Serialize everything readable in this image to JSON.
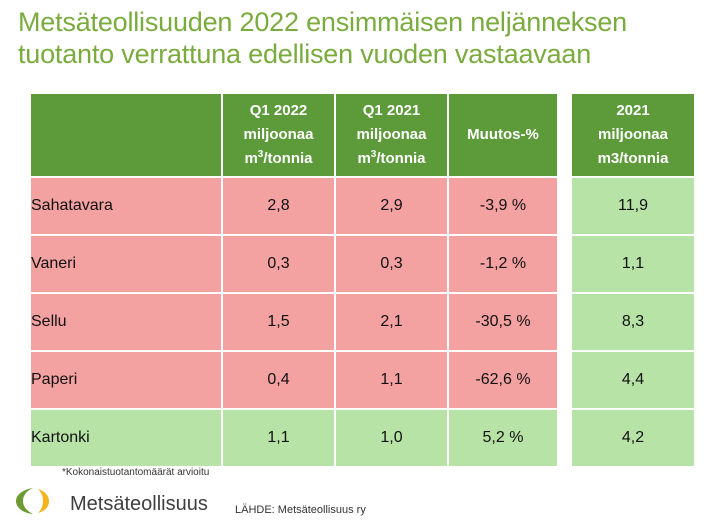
{
  "title_lines": [
    "Metsäteollisuuden 2022 ensimmäisen neljänneksen",
    "tuotanto verrattuna edellisen vuoden vastaavaan"
  ],
  "main_table": {
    "headers": [
      "",
      {
        "line1": "Q1 2022",
        "line2": "miljoonaa",
        "unit_pre": "m",
        "unit_sup": "3",
        "unit_post": "/tonnia"
      },
      {
        "line1": "Q1 2021",
        "line2": "miljoonaa",
        "unit_pre": "m",
        "unit_sup": "3",
        "unit_post": "/tonnia"
      },
      "Muutos-%"
    ],
    "rows": [
      {
        "name": "Sahatavara",
        "q1_2022": "2,8",
        "q1_2021": "2,9",
        "change": "-3,9 %"
      },
      {
        "name": "Vaneri",
        "q1_2022": "0,3",
        "q1_2021": "0,3",
        "change": "-1,2 %"
      },
      {
        "name": "Sellu",
        "q1_2022": "1,5",
        "q1_2021": "2,1",
        "change": "-30,5 %"
      },
      {
        "name": "Paperi",
        "q1_2022": "0,4",
        "q1_2021": "1,1",
        "change": "-62,6 %"
      },
      {
        "name": "Kartonki",
        "q1_2022": "1,1",
        "q1_2021": "1,0",
        "change": "5,2 %"
      }
    ]
  },
  "side_table": {
    "header_lines": [
      "2021",
      "miljoonaa",
      "m3/tonnia"
    ],
    "values": [
      "11,9",
      "1,1",
      "8,3",
      "4,4",
      "4,2"
    ]
  },
  "footnote": "*Kokonaistuotantomäärät arvioitu",
  "brand": "Metsäteollisuus",
  "source": "LÄHDE: Metsäteollisuus ry",
  "colors": {
    "title": "#7aab3e",
    "header_bg": "#5d9b3a",
    "decrease_bg": "#f4a1a1",
    "increase_bg": "#b8e3a6"
  }
}
